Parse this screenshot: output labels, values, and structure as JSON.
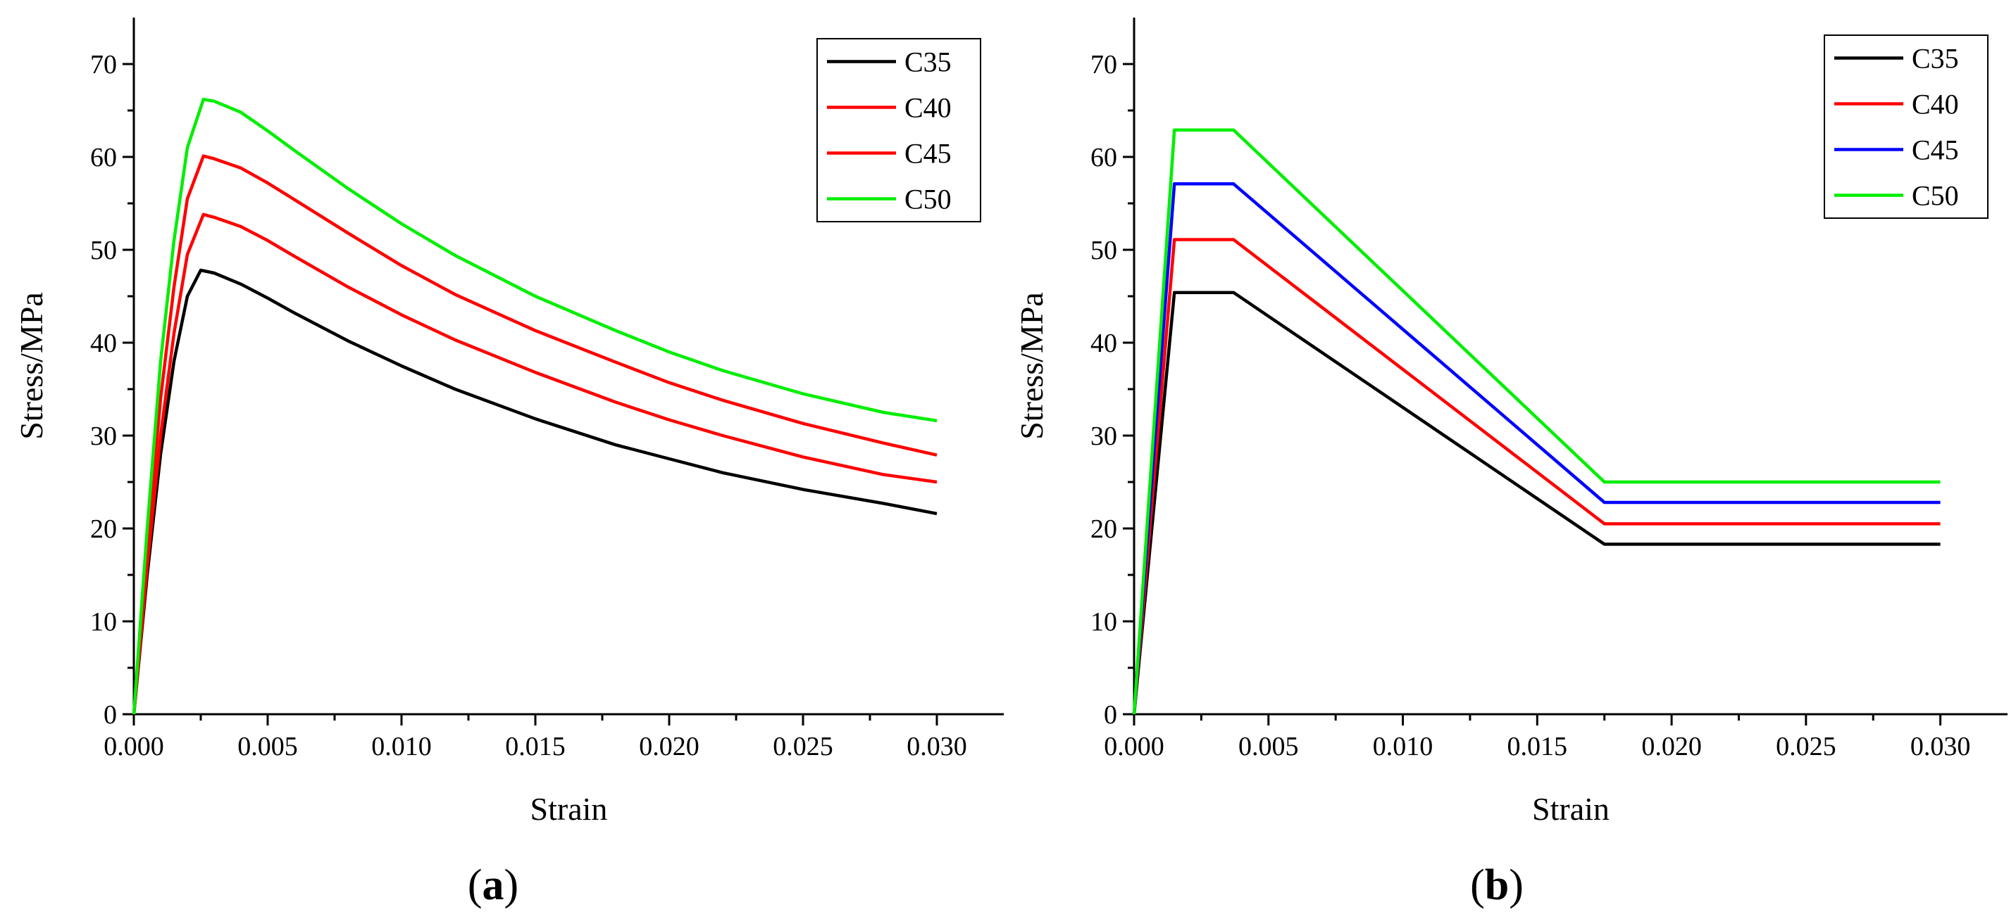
{
  "chart_data": [
    {
      "type": "line",
      "panel_label": "(a)",
      "panel_letter": "a",
      "xlabel": "Strain",
      "ylabel": "Stress/MPa",
      "xlim": [
        0,
        0.0325
      ],
      "ylim": [
        0,
        75
      ],
      "xticks": [
        0.0,
        0.005,
        0.01,
        0.015,
        0.02,
        0.025,
        0.03
      ],
      "xtick_labels": [
        "0.000",
        "0.005",
        "0.010",
        "0.015",
        "0.020",
        "0.025",
        "0.030"
      ],
      "yticks": [
        0,
        10,
        20,
        30,
        40,
        50,
        60,
        70
      ],
      "ytick_labels": [
        "0",
        "10",
        "20",
        "30",
        "40",
        "50",
        "60",
        "70"
      ],
      "legend": "top-right",
      "series": [
        {
          "name": "C35",
          "color": "#000000",
          "x": [
            0,
            0.0005,
            0.001,
            0.0015,
            0.002,
            0.0025,
            0.003,
            0.004,
            0.005,
            0.006,
            0.008,
            0.01,
            0.012,
            0.015,
            0.018,
            0.02,
            0.022,
            0.025,
            0.028,
            0.03
          ],
          "y": [
            0,
            15,
            28,
            38,
            45,
            47.8,
            47.5,
            46.3,
            44.8,
            43.2,
            40.2,
            37.5,
            35.0,
            31.8,
            29.0,
            27.5,
            26.0,
            24.2,
            22.7,
            21.6
          ]
        },
        {
          "name": "C40",
          "color": "#ff0000",
          "x": [
            0,
            0.0005,
            0.001,
            0.0015,
            0.002,
            0.0026,
            0.003,
            0.004,
            0.005,
            0.006,
            0.008,
            0.01,
            0.012,
            0.015,
            0.018,
            0.02,
            0.022,
            0.025,
            0.028,
            0.03
          ],
          "y": [
            0,
            16,
            30,
            41,
            49.5,
            53.8,
            53.5,
            52.5,
            51.0,
            49.3,
            46.0,
            43.0,
            40.3,
            36.8,
            33.6,
            31.7,
            30.0,
            27.7,
            25.8,
            25.0
          ]
        },
        {
          "name": "C45",
          "color": "#ff0000",
          "x": [
            0,
            0.0005,
            0.001,
            0.0015,
            0.002,
            0.0026,
            0.003,
            0.004,
            0.005,
            0.006,
            0.008,
            0.01,
            0.012,
            0.015,
            0.018,
            0.02,
            0.022,
            0.025,
            0.028,
            0.03
          ],
          "y": [
            0,
            18,
            34,
            46,
            55.5,
            60.1,
            59.8,
            58.8,
            57.2,
            55.4,
            51.8,
            48.3,
            45.2,
            41.3,
            37.9,
            35.7,
            33.8,
            31.3,
            29.2,
            27.9
          ]
        },
        {
          "name": "C50",
          "color": "#00ee00",
          "x": [
            0,
            0.0005,
            0.001,
            0.0015,
            0.002,
            0.0026,
            0.003,
            0.004,
            0.005,
            0.006,
            0.008,
            0.01,
            0.012,
            0.015,
            0.018,
            0.02,
            0.022,
            0.025,
            0.028,
            0.03
          ],
          "y": [
            0,
            20,
            38,
            51,
            61,
            66.2,
            66.0,
            64.8,
            62.8,
            60.7,
            56.6,
            52.8,
            49.4,
            45.0,
            41.3,
            39.0,
            37.0,
            34.5,
            32.5,
            31.6
          ]
        }
      ]
    },
    {
      "type": "line",
      "panel_label": "(b)",
      "panel_letter": "b",
      "xlabel": "Strain",
      "ylabel": "Stress/MPa",
      "xlim": [
        0,
        0.0325
      ],
      "ylim": [
        0,
        75
      ],
      "xticks": [
        0.0,
        0.005,
        0.01,
        0.015,
        0.02,
        0.025,
        0.03
      ],
      "xtick_labels": [
        "0.000",
        "0.005",
        "0.010",
        "0.015",
        "0.020",
        "0.025",
        "0.030"
      ],
      "yticks": [
        0,
        10,
        20,
        30,
        40,
        50,
        60,
        70
      ],
      "ytick_labels": [
        "0",
        "10",
        "20",
        "30",
        "40",
        "50",
        "60",
        "70"
      ],
      "legend": "top-right",
      "series": [
        {
          "name": "C35",
          "color": "#000000",
          "x": [
            0,
            0.0015,
            0.0037,
            0.0175,
            0.03
          ],
          "y": [
            0,
            45.4,
            45.4,
            18.3,
            18.3
          ]
        },
        {
          "name": "C40",
          "color": "#ff0000",
          "x": [
            0,
            0.0015,
            0.0037,
            0.0175,
            0.03
          ],
          "y": [
            0,
            51.1,
            51.1,
            20.5,
            20.5
          ]
        },
        {
          "name": "C45",
          "color": "#0000ff",
          "x": [
            0,
            0.0015,
            0.0037,
            0.0175,
            0.03
          ],
          "y": [
            0,
            57.1,
            57.1,
            22.8,
            22.8
          ]
        },
        {
          "name": "C50",
          "color": "#00ee00",
          "x": [
            0,
            0.0015,
            0.0037,
            0.0175,
            0.03
          ],
          "y": [
            0,
            62.9,
            62.9,
            25.0,
            25.0
          ]
        }
      ]
    }
  ]
}
